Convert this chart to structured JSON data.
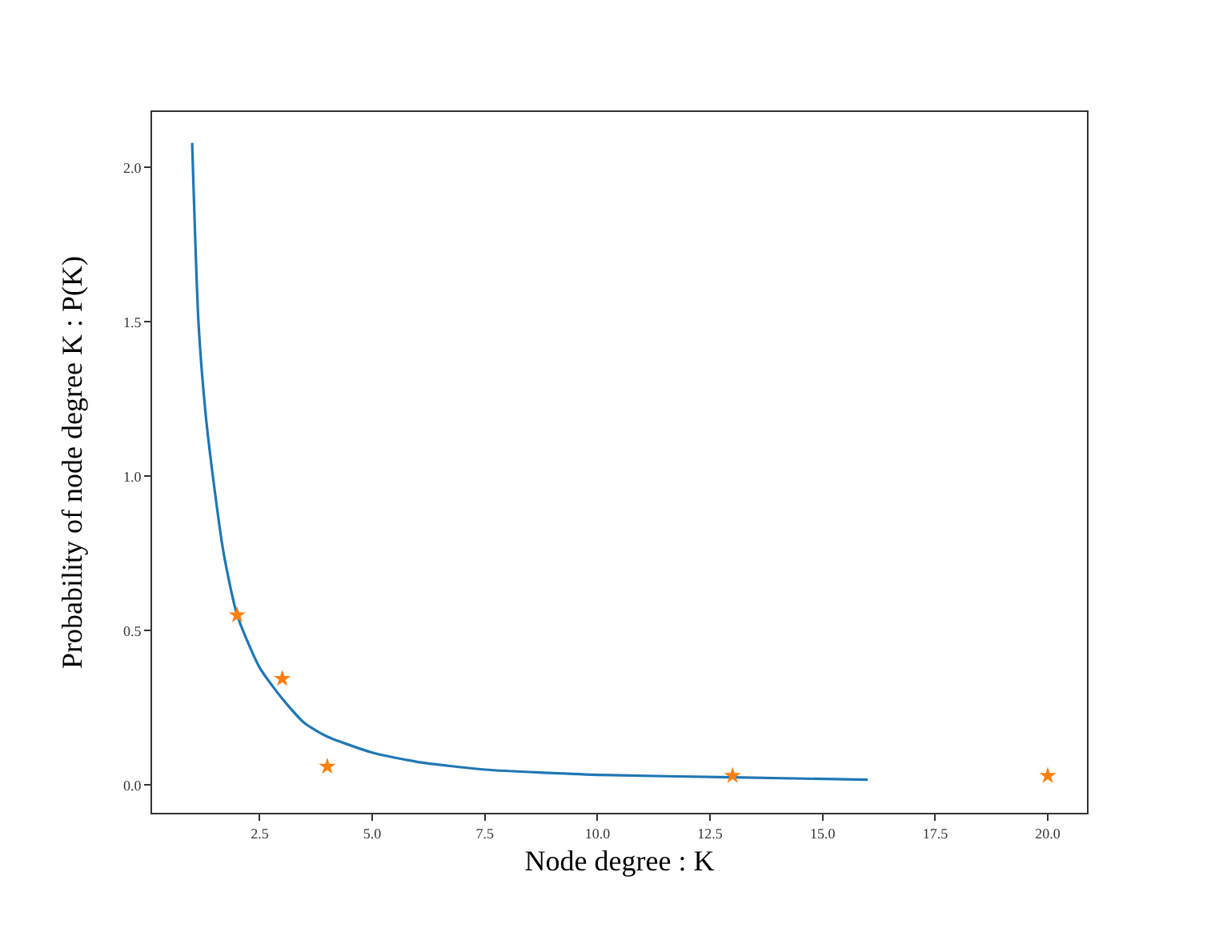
{
  "chart_data": {
    "type": "line",
    "xlabel": "Node degree : K",
    "ylabel": "Probability of node degree K : P(K)",
    "xlim": [
      0.11,
      20.87
    ],
    "ylim": [
      -0.09,
      2.18
    ],
    "xticks": [
      {
        "value": 2.5,
        "label": "2.5"
      },
      {
        "value": 5,
        "label": "5.0"
      },
      {
        "value": 7.5,
        "label": "7.5"
      },
      {
        "value": 10,
        "label": "10.0"
      },
      {
        "value": 12.5,
        "label": "12.5"
      },
      {
        "value": 15,
        "label": "15.0"
      },
      {
        "value": 17.5,
        "label": "17.5"
      },
      {
        "value": 20,
        "label": "20.0"
      }
    ],
    "yticks": [
      {
        "value": 0,
        "label": "0.0"
      },
      {
        "value": 0.5,
        "label": "0.5"
      },
      {
        "value": 1,
        "label": "1.0"
      },
      {
        "value": 1.5,
        "label": "1.5"
      },
      {
        "value": 2,
        "label": "2.0"
      }
    ],
    "series": [
      {
        "color": "#1f77b4",
        "marker": "none",
        "line_style": "solid",
        "x": [
          1.0,
          1.14,
          1.3,
          1.46,
          1.7,
          2,
          2.5,
          3,
          3.5,
          4,
          5,
          6,
          7.5,
          10,
          13,
          16
        ],
        "values": [
          2.08,
          1.5,
          1.2,
          1.0,
          0.75,
          0.55,
          0.38,
          0.28,
          0.2,
          0.157,
          0.105,
          0.075,
          0.05,
          0.033,
          0.025,
          0.017
        ]
      },
      {
        "type": "scatter",
        "color": "#ff7f0e",
        "marker": "star",
        "x": [
          2,
          3,
          4,
          13,
          20
        ],
        "values": [
          0.55,
          0.344,
          0.06,
          0.03,
          0.03
        ]
      }
    ]
  }
}
